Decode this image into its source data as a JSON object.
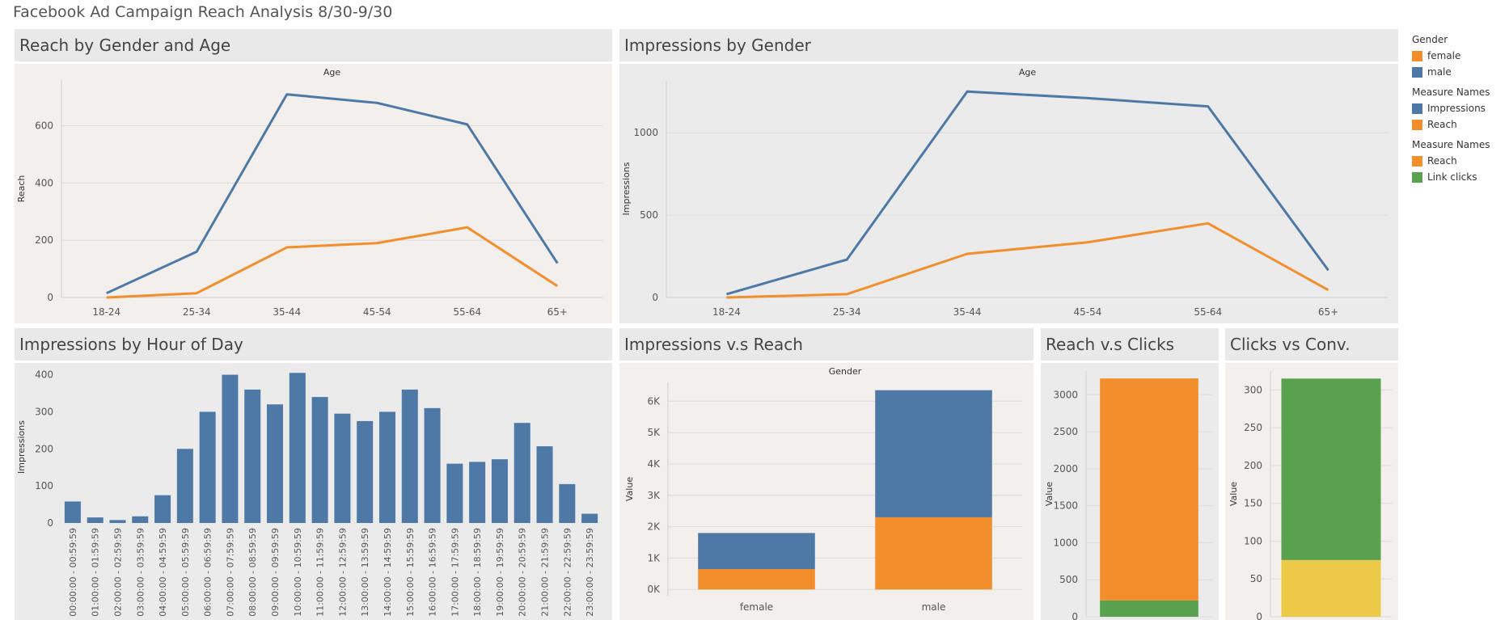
{
  "dashboard": {
    "title": "Facebook Ad Campaign Reach Analysis 8/30-9/30"
  },
  "colors": {
    "blue": "#4e79a7",
    "orange": "#f28e2b",
    "green": "#59a14f",
    "yellow": "#edc948"
  },
  "legend": {
    "groups": [
      {
        "title": "Gender",
        "items": [
          {
            "label": "female",
            "color": "#f28e2b"
          },
          {
            "label": "male",
            "color": "#4e79a7"
          }
        ]
      },
      {
        "title": "Measure Names",
        "items": [
          {
            "label": "Impressions",
            "color": "#4e79a7"
          },
          {
            "label": "Reach",
            "color": "#f28e2b"
          }
        ]
      },
      {
        "title": "Measure Names",
        "items": [
          {
            "label": "Reach",
            "color": "#f28e2b"
          },
          {
            "label": "Link clicks",
            "color": "#59a14f"
          }
        ]
      }
    ]
  },
  "panels": {
    "reach_age": {
      "title": "Reach by Gender and Age"
    },
    "impr_gender": {
      "title": "Impressions by Gender"
    },
    "impr_hour": {
      "title": "Impressions by Hour of Day"
    },
    "impr_reach": {
      "title": "Impressions v.s Reach"
    },
    "reach_clicks": {
      "title": "Reach v.s Clicks"
    },
    "clicks_conv": {
      "title": "Clicks vs Conv."
    }
  },
  "chart_data": [
    {
      "id": "reach_age",
      "type": "line",
      "title": "Reach by Gender and Age",
      "xlabel": "Age",
      "ylabel": "Reach",
      "categories": [
        "18-24",
        "25-34",
        "35-44",
        "45-54",
        "55-64",
        "65+"
      ],
      "series": [
        {
          "name": "male",
          "color": "#4e79a7",
          "values": [
            15,
            160,
            710,
            680,
            605,
            120
          ]
        },
        {
          "name": "female",
          "color": "#f28e2b",
          "values": [
            0,
            15,
            175,
            190,
            245,
            40
          ]
        }
      ],
      "yticks": [
        0,
        200,
        400,
        600
      ],
      "ylim": [
        0,
        760
      ]
    },
    {
      "id": "impr_gender",
      "type": "line",
      "title": "Impressions by Gender",
      "xlabel": "Age",
      "ylabel": "Impressions",
      "categories": [
        "18-24",
        "25-34",
        "35-44",
        "45-54",
        "55-64",
        "65+"
      ],
      "series": [
        {
          "name": "male",
          "color": "#4e79a7",
          "values": [
            20,
            230,
            1250,
            1210,
            1160,
            165
          ]
        },
        {
          "name": "female",
          "color": "#f28e2b",
          "values": [
            0,
            20,
            265,
            335,
            450,
            45
          ]
        }
      ],
      "yticks": [
        0,
        500,
        1000
      ],
      "ylim": [
        0,
        1320
      ]
    },
    {
      "id": "impr_hour",
      "type": "bar",
      "title": "Impressions by Hour of Day",
      "xlabel": "",
      "ylabel": "Impressions",
      "categories": [
        "00:00:00 - 00:59:59",
        "01:00:00 - 01:59:59",
        "02:00:00 - 02:59:59",
        "03:00:00 - 03:59:59",
        "04:00:00 - 04:59:59",
        "05:00:00 - 05:59:59",
        "06:00:00 - 06:59:59",
        "07:00:00 - 07:59:59",
        "08:00:00 - 08:59:59",
        "09:00:00 - 09:59:59",
        "10:00:00 - 10:59:59",
        "11:00:00 - 11:59:59",
        "12:00:00 - 12:59:59",
        "13:00:00 - 13:59:59",
        "14:00:00 - 14:59:59",
        "15:00:00 - 15:59:59",
        "16:00:00 - 16:59:59",
        "17:00:00 - 17:59:59",
        "18:00:00 - 18:59:59",
        "19:00:00 - 19:59:59",
        "20:00:00 - 20:59:59",
        "21:00:00 - 21:59:59",
        "22:00:00 - 22:59:59",
        "23:00:00 - 23:59:59"
      ],
      "values": [
        58,
        15,
        8,
        18,
        75,
        200,
        300,
        400,
        360,
        320,
        405,
        340,
        295,
        275,
        300,
        360,
        310,
        160,
        165,
        172,
        270,
        207,
        105,
        25
      ],
      "color": "#4e79a7",
      "yticks": [
        0,
        100,
        200,
        300,
        400
      ],
      "ylim": [
        0,
        410
      ]
    },
    {
      "id": "impr_reach",
      "type": "bar",
      "stacked": true,
      "title": "Impressions v.s Reach",
      "xlabel": "Gender",
      "ylabel": "Value",
      "categories": [
        "female",
        "male"
      ],
      "series": [
        {
          "name": "Reach",
          "color": "#f28e2b",
          "values": [
            650,
            2300
          ]
        },
        {
          "name": "Impressions",
          "color": "#4e79a7",
          "values": [
            1150,
            4050
          ]
        }
      ],
      "ytick_values": [
        0,
        1000,
        2000,
        3000,
        4000,
        5000,
        6000
      ],
      "ytick_labels": [
        "0K",
        "1K",
        "2K",
        "3K",
        "4K",
        "5K",
        "6K"
      ],
      "ylim": [
        -200,
        6600
      ]
    },
    {
      "id": "reach_clicks",
      "type": "bar",
      "stacked": true,
      "title": "Reach v.s Clicks",
      "xlabel": "",
      "ylabel": "Value",
      "categories": [
        ""
      ],
      "series": [
        {
          "name": "Link clicks",
          "color": "#59a14f",
          "values": [
            220
          ]
        },
        {
          "name": "Reach",
          "color": "#f28e2b",
          "values": [
            3000
          ]
        }
      ],
      "yticks": [
        0,
        500,
        1000,
        1500,
        2000,
        2500,
        3000
      ],
      "ylim": [
        0,
        3320
      ]
    },
    {
      "id": "clicks_conv",
      "type": "bar",
      "stacked": true,
      "title": "Clicks vs Conv.",
      "xlabel": "",
      "ylabel": "Value",
      "categories": [
        ""
      ],
      "series": [
        {
          "name": "",
          "color": "#edc948",
          "values": [
            75
          ]
        },
        {
          "name": "",
          "color": "#59a14f",
          "values": [
            240
          ]
        }
      ],
      "yticks": [
        0,
        50,
        100,
        150,
        200,
        250,
        300
      ],
      "ylim": [
        0,
        325
      ]
    }
  ]
}
